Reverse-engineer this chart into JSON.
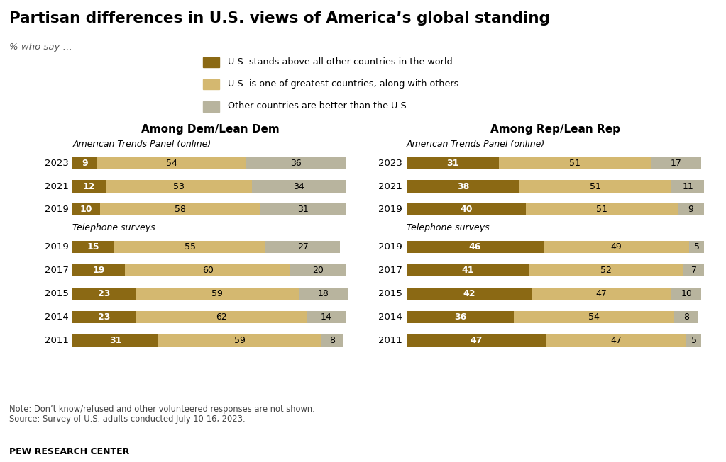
{
  "title": "Partisan differences in U.S. views of America’s global standing",
  "subtitle": "% who say …",
  "legend_labels": [
    "U.S. stands above all other countries in the world",
    "U.S. is one of greatest countries, along with others",
    "Other countries are better than the U.S."
  ],
  "colors": {
    "above": "#8B6914",
    "greatest": "#D4B870",
    "other": "#B8B49E"
  },
  "dem_atp": {
    "years": [
      "2023",
      "2021",
      "2019"
    ],
    "above": [
      9,
      12,
      10
    ],
    "greatest": [
      54,
      53,
      58
    ],
    "other": [
      36,
      34,
      31
    ]
  },
  "dem_tel": {
    "years": [
      "2019",
      "2017",
      "2015",
      "2014",
      "2011"
    ],
    "above": [
      15,
      19,
      23,
      23,
      31
    ],
    "greatest": [
      55,
      60,
      59,
      62,
      59
    ],
    "other": [
      27,
      20,
      18,
      14,
      8
    ]
  },
  "rep_atp": {
    "years": [
      "2023",
      "2021",
      "2019"
    ],
    "above": [
      31,
      38,
      40
    ],
    "greatest": [
      51,
      51,
      51
    ],
    "other": [
      17,
      11,
      9
    ]
  },
  "rep_tel": {
    "years": [
      "2019",
      "2017",
      "2015",
      "2014",
      "2011"
    ],
    "above": [
      46,
      41,
      42,
      36,
      47
    ],
    "greatest": [
      49,
      52,
      47,
      54,
      47
    ],
    "other": [
      5,
      7,
      10,
      8,
      5
    ]
  },
  "note": "Note: Don’t know/refused and other volunteered responses are not shown.\nSource: Survey of U.S. adults conducted July 10-16, 2023.",
  "footer": "PEW RESEARCH CENTER",
  "dem_title": "Among Dem/Lean Dem",
  "rep_title": "Among Rep/Lean Rep",
  "atp_label": "American Trends Panel (online)",
  "tel_label": "Telephone surveys",
  "bg_color": "#FFFFFF"
}
